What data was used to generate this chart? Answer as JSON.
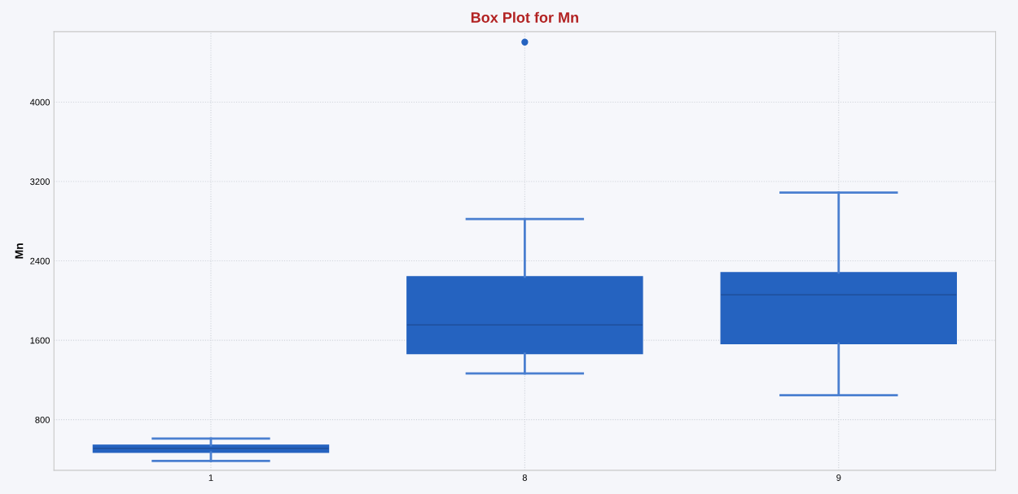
{
  "chart_data": {
    "type": "box",
    "title": "Box Plot for Mn",
    "ylabel": "Mn",
    "categories": [
      "1",
      "8",
      "9"
    ],
    "boxes": [
      {
        "low": 385,
        "q1": 470,
        "median": 510,
        "q3": 543,
        "high": 609
      },
      {
        "low": 1265,
        "q1": 1465,
        "median": 1755,
        "q3": 2241,
        "high": 2821,
        "outliers": [
          4604
        ]
      },
      {
        "low": 1047,
        "q1": 1566,
        "median": 2058,
        "q3": 2282,
        "high": 3088
      }
    ],
    "color": "#2563c0",
    "ylim": [
      290,
      4710
    ],
    "yticks": [
      800,
      1600,
      2400,
      3200,
      4000
    ],
    "grid": true,
    "legend": false
  }
}
